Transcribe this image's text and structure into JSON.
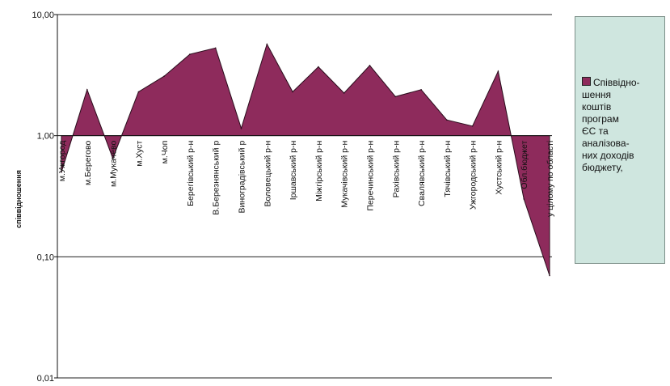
{
  "chart_data": {
    "type": "area",
    "yscale": "log",
    "ylabel": "співвідношення",
    "ylim": [
      0.01,
      10
    ],
    "yticks": [
      {
        "value": 10,
        "label": "10,00"
      },
      {
        "value": 1,
        "label": "1,00"
      },
      {
        "value": 0.1,
        "label": "0,10"
      },
      {
        "value": 0.01,
        "label": "0,01"
      }
    ],
    "grid": true,
    "legend_position": "right",
    "color": "#8e2b5c",
    "categories": [
      "м.Ужгород",
      "м.Берегово",
      "м.Мукачево",
      "м.Хуст",
      "м.Чоп",
      "Берегівський р-н",
      "В.Березнянський р",
      "Виноградівський р",
      "Воловецький р-н",
      "Іршавський р-н",
      "Міжгірський р-н",
      "Мукачівський р-н",
      "Перечинський р-н",
      "Рахівський р-н",
      "Свалявський р-н",
      "Тячівський р-н",
      "Ужгородський р-н",
      "Хустський р-н",
      "Обл.бюджет",
      "у цілому по області"
    ],
    "series": [
      {
        "name": "Співвідно-\nшення\nкоштів\nпрограм\nЄС та\nаналізова-\nних доходів\nбюджету,",
        "values": [
          0.5,
          2.4,
          0.65,
          2.3,
          3.1,
          4.7,
          5.3,
          1.15,
          5.7,
          2.3,
          3.7,
          2.25,
          3.8,
          2.1,
          2.4,
          1.35,
          1.2,
          3.4,
          0.3,
          0.07
        ]
      }
    ]
  }
}
